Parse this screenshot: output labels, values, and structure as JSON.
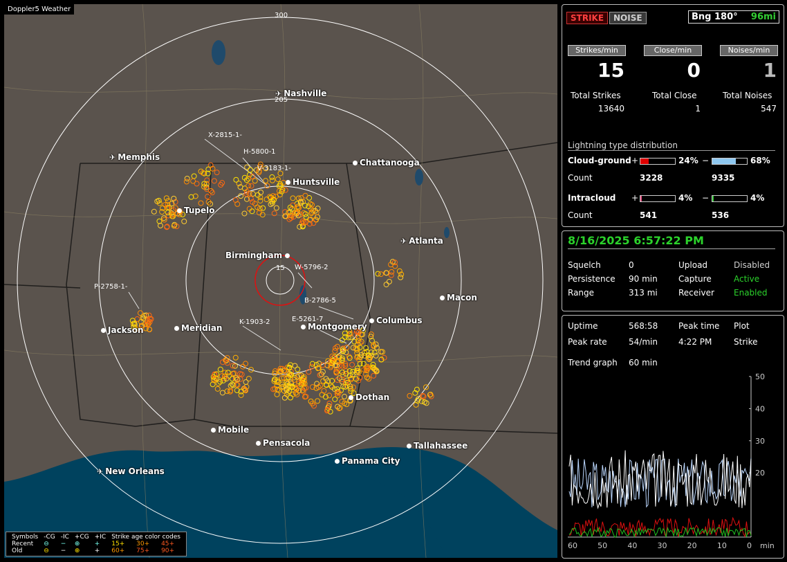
{
  "map": {
    "title": "Doppler5 Weather",
    "range_rings": [
      "300",
      "205",
      "15"
    ],
    "cities": [
      {
        "name": "Nashville",
        "plane": true
      },
      {
        "name": "Memphis",
        "plane": true
      },
      {
        "name": "Chattanooga",
        "plane": false
      },
      {
        "name": "Huntsville",
        "plane": false
      },
      {
        "name": "Tupelo",
        "plane": false
      },
      {
        "name": "Atlanta",
        "plane": true
      },
      {
        "name": "Birmingham",
        "plane": false
      },
      {
        "name": "Macon",
        "plane": false
      },
      {
        "name": "Jackson",
        "plane": false
      },
      {
        "name": "Meridian",
        "plane": false
      },
      {
        "name": "Montgomery",
        "plane": false
      },
      {
        "name": "Columbus",
        "plane": false
      },
      {
        "name": "Dothan",
        "plane": false
      },
      {
        "name": "Mobile",
        "plane": false
      },
      {
        "name": "Pensacola",
        "plane": false
      },
      {
        "name": "Tallahassee",
        "plane": false
      },
      {
        "name": "Panama City",
        "plane": false
      },
      {
        "name": "New Orleans",
        "plane": true
      }
    ],
    "cell_labels": [
      "X-2815-1-",
      "H-5800-1",
      "V-3183-1-",
      "W-5796-2",
      "B-2786-5",
      "P-2758-1-",
      "K-1903-2",
      "E-5261-7"
    ],
    "legend": {
      "header": [
        "Symbols",
        "-CG",
        "-IC",
        "+CG",
        "+IC",
        "Strike age color codes"
      ],
      "recent_label": "Recent",
      "old_label": "Old",
      "recent_ages": [
        "15+",
        "30+",
        "45+"
      ],
      "old_ages": [
        "60+",
        "75+",
        "90+"
      ]
    }
  },
  "status": {
    "strike_label": "STRIKE",
    "noise_label": "NOISE",
    "bearing": "Bng 180°",
    "distance": "96mi",
    "rate_headers": [
      "Strikes/min",
      "Close/min",
      "Noises/min"
    ],
    "rates": [
      "15",
      "0",
      "1"
    ],
    "total_labels": [
      "Total Strikes",
      "Total Close",
      "Total Noises"
    ],
    "totals": [
      "13640",
      "1",
      "547"
    ],
    "dist_title": "Lightning type distribution",
    "cg_label": "Cloud-ground",
    "ic_label": "Intracloud",
    "count_label": "Count",
    "plus": "+",
    "minus": "−",
    "cg_pos_pct": "24%",
    "cg_neg_pct": "68%",
    "cg_pos_count": "3228",
    "cg_neg_count": "9335",
    "ic_pos_pct": "4%",
    "ic_neg_pct": "4%",
    "ic_pos_count": "541",
    "ic_neg_count": "536",
    "cg_pos_frac": 0.24,
    "cg_neg_frac": 0.68,
    "ic_pos_frac": 0.04,
    "ic_neg_frac": 0.04,
    "colors": {
      "cg_pos": "#e00000",
      "cg_neg": "#8fc8f0",
      "ic_pos": "#e05080",
      "ic_neg": "#30c030"
    }
  },
  "settings": {
    "datetime": "8/16/2025 6:57:22 PM",
    "squelch_label": "Squelch",
    "squelch": "0",
    "upload_label": "Upload",
    "upload": "Disabled",
    "persistence_label": "Persistence",
    "persistence": "90 min",
    "capture_label": "Capture",
    "capture": "Active",
    "range_label": "Range",
    "range": "313 mi",
    "receiver_label": "Receiver",
    "receiver": "Enabled"
  },
  "stats": {
    "uptime_label": "Uptime",
    "uptime": "568:58",
    "peak_time_label": "Peak time",
    "peak_time": "4:22 PM",
    "plot_label": "Plot",
    "plot": "Strike",
    "peak_rate_label": "Peak rate",
    "peak_rate": "54/min",
    "trend_label": "Trend graph",
    "trend": "60 min",
    "y_ticks": [
      "50",
      "40",
      "30",
      "20"
    ],
    "x_ticks": [
      "60",
      "50",
      "40",
      "30",
      "20",
      "10",
      "0"
    ],
    "x_unit": "min"
  }
}
